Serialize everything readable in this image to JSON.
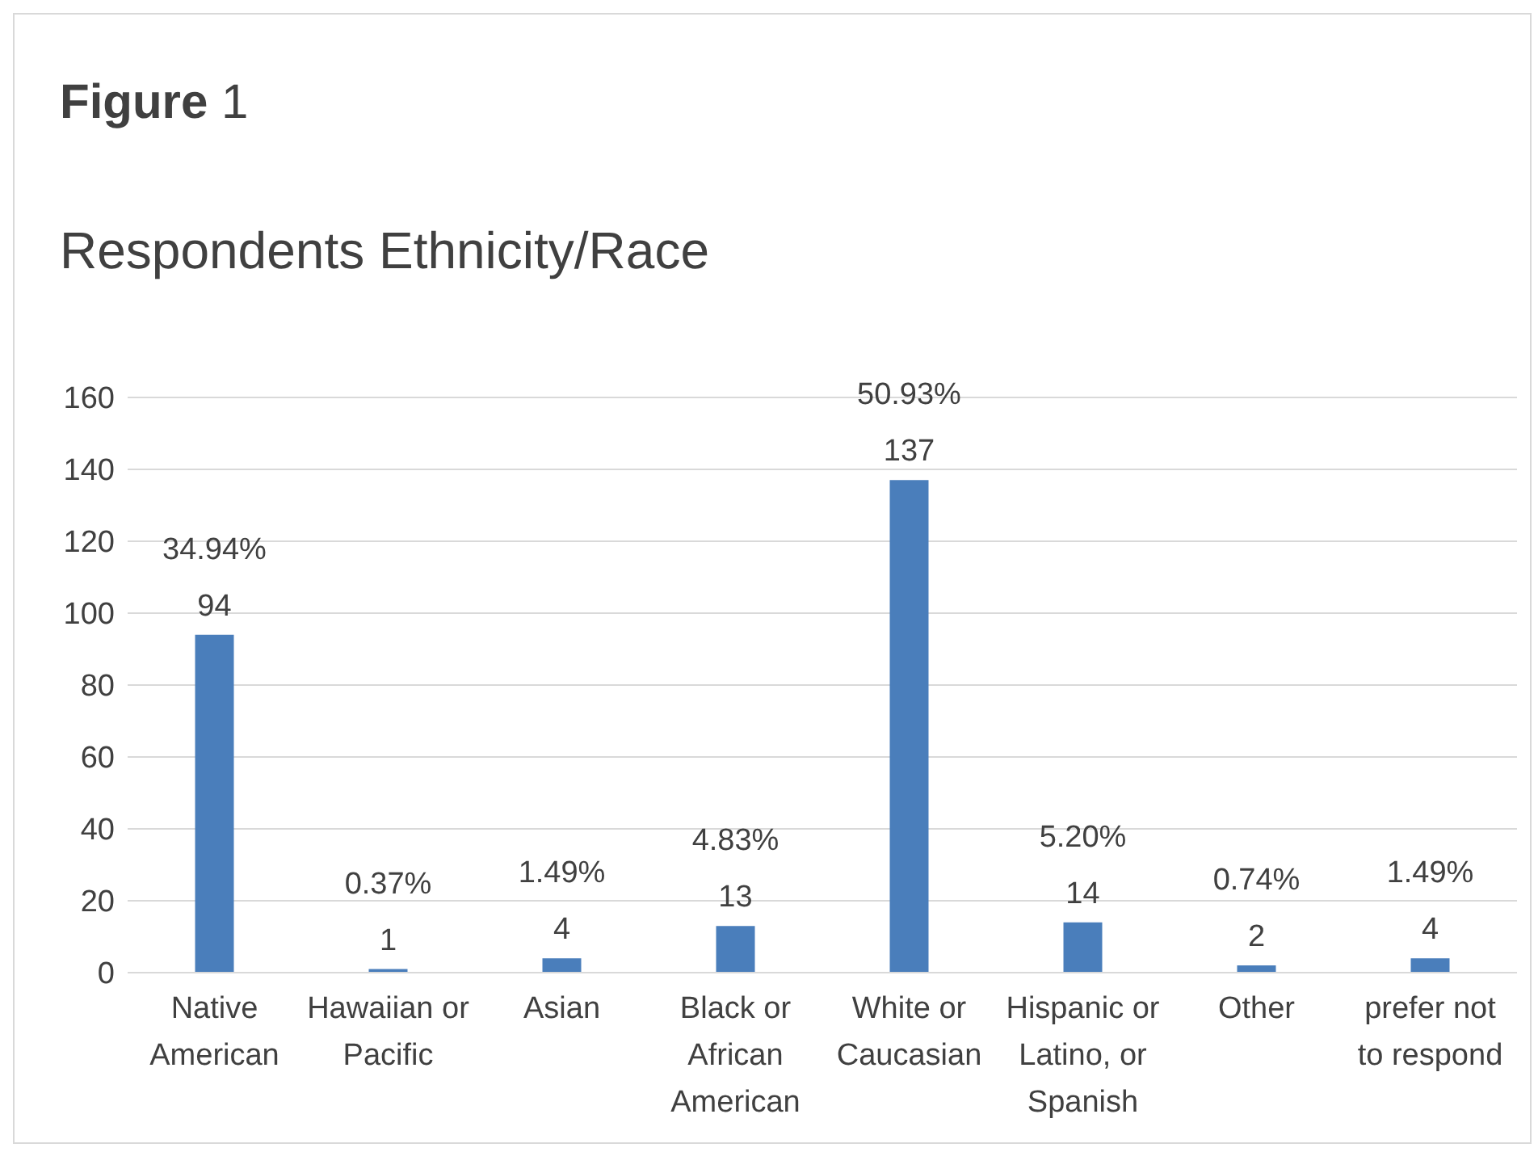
{
  "chart_data": {
    "type": "bar",
    "title": "Figure 1",
    "subtitle": "Respondents Ethnicity/Race",
    "categories": [
      "Native American",
      "Hawaiian or Pacific",
      "Asian",
      "Black or African American",
      "White or Caucasian",
      "Hispanic or Latino, or Spanish",
      "Other",
      "prefer not to respond"
    ],
    "series": [
      {
        "color": "#4a7ebb",
        "values": [
          94,
          1,
          4,
          13,
          137,
          14,
          2,
          4
        ]
      }
    ],
    "data_labels": true,
    "annotations": [
      {
        "text": "34.94%",
        "x": "Native American",
        "y": 94
      },
      {
        "text": "0.37%",
        "x": "Hawaiian or Pacific",
        "y": 1
      },
      {
        "text": "1.49%",
        "x": "Asian",
        "y": 4
      },
      {
        "text": "4.83%",
        "x": "Black or African American",
        "y": 13
      },
      {
        "text": "50.93%",
        "x": "White or Caucasian",
        "y": 137
      },
      {
        "text": "5.20%",
        "x": "Hispanic or Latino, or Spanish",
        "y": 14
      },
      {
        "text": "0.74%",
        "x": "Other",
        "y": 2
      },
      {
        "text": "1.49%",
        "x": "prefer not to respond",
        "y": 4
      }
    ],
    "ylim": [
      0,
      160
    ],
    "yticks": [
      0,
      20,
      40,
      60,
      80,
      100,
      120,
      140,
      160
    ],
    "grid": "y"
  }
}
